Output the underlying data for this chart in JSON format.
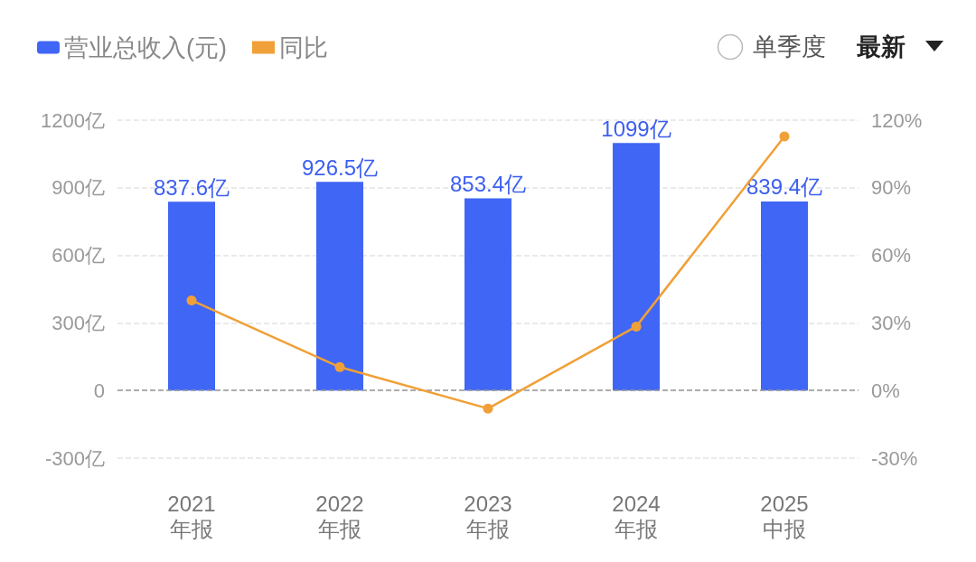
{
  "chart_data": {
    "type": "bar",
    "categories": [
      "2021\n年报",
      "2022\n年报",
      "2023\n年报",
      "2024\n年报",
      "2025\n中报"
    ],
    "series": [
      {
        "name": "营业总收入(元)",
        "color": "#4066f5",
        "values": [
          837.6,
          926.5,
          853.4,
          1099,
          839.4
        ],
        "value_labels": [
          "837.6亿",
          "926.5亿",
          "853.4亿",
          "1099亿",
          "839.4亿"
        ]
      },
      {
        "name": "同比",
        "type": "line",
        "axis": "y2",
        "color": "#f0a038",
        "values": [
          40,
          10.4,
          -8,
          28.4,
          112.8
        ]
      }
    ],
    "ylim": [
      -300,
      1200
    ],
    "yticks": [
      {
        "value": -300,
        "label": "-300亿"
      },
      0,
      {
        "value": 300,
        "label": "300亿"
      },
      {
        "value": 600,
        "label": "600亿"
      },
      {
        "value": 900,
        "label": "900亿"
      },
      {
        "value": 1200,
        "label": "1200亿"
      }
    ],
    "y2lim": [
      -30,
      120
    ],
    "y2ticks": [
      {
        "value": -30,
        "label": "-30%"
      },
      {
        "value": 0,
        "label": "0%"
      },
      {
        "value": 30,
        "label": "30%"
      },
      {
        "value": 60,
        "label": "60%"
      },
      {
        "value": 90,
        "label": "90%"
      },
      {
        "value": 120,
        "label": "120%"
      }
    ],
    "ref_lines": [
      {
        "axis": "y",
        "value": 0,
        "color": "#999999",
        "line_style": "dashed"
      }
    ],
    "grid": "y",
    "legend": "top left",
    "marker": "circle",
    "line_style": "solid",
    "annotations": [
      "单季度",
      "最新"
    ]
  }
}
